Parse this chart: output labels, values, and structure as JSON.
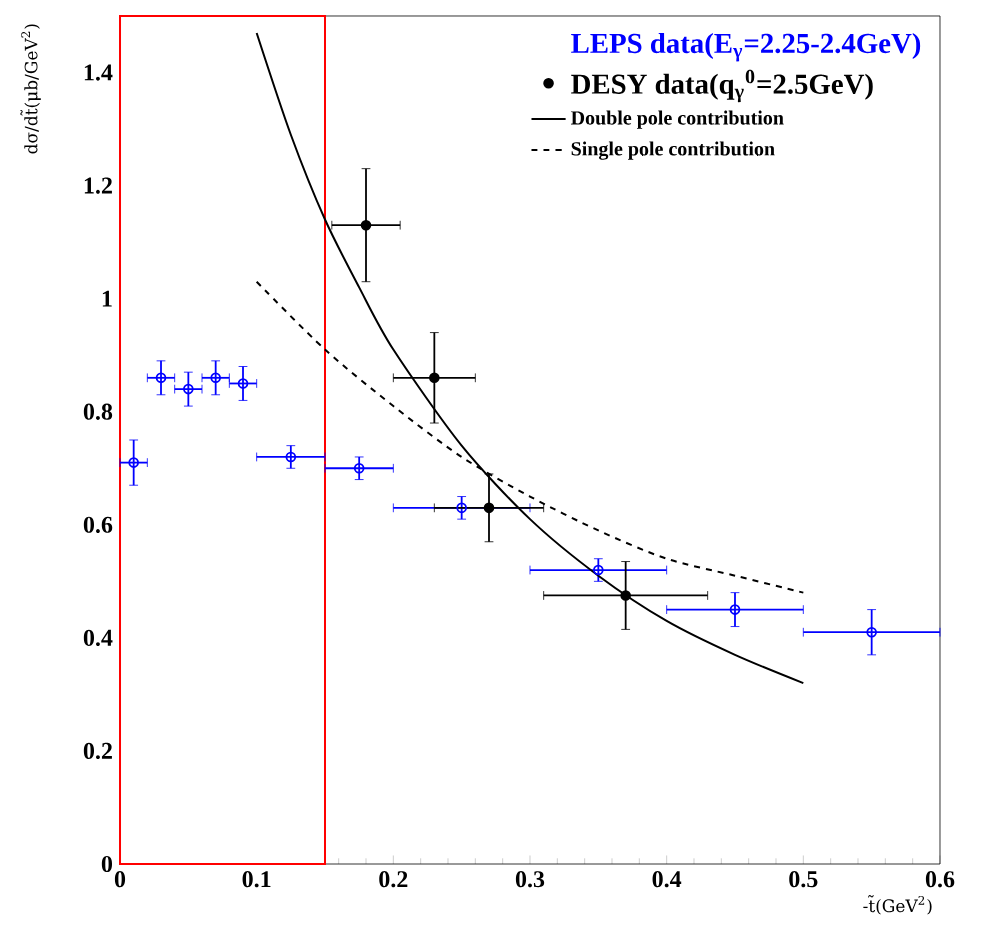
{
  "chart_data": {
    "type": "scatter",
    "xlabel": "-t̃(GeV$^{2}$)",
    "ylabel": "dσ/dt̃(μb/GeV$^{2}$)",
    "xlim": [
      0,
      0.6
    ],
    "ylim": [
      0,
      1.5
    ],
    "xticks": [
      0,
      0.1,
      0.2,
      0.3,
      0.4,
      0.5,
      0.6
    ],
    "yticks": [
      0,
      0.2,
      0.4,
      0.6,
      0.8,
      1,
      1.2,
      1.4
    ],
    "grid": false,
    "legend": "top right",
    "bands": [
      {
        "axis": "x",
        "from": 0,
        "to": 0.15,
        "color": "#ff0000"
      }
    ],
    "series": [
      {
        "name": "LEPS data(E$_{γ}$=2.25-2.4GeV)",
        "marker": "circle",
        "color": "#0000ff",
        "x": [
          0.01,
          0.03,
          0.05,
          0.07,
          0.09,
          0.125,
          0.175,
          0.25,
          0.35,
          0.45,
          0.55
        ],
        "values": [
          0.71,
          0.86,
          0.84,
          0.86,
          0.85,
          0.72,
          0.7,
          0.63,
          0.52,
          0.45,
          0.41
        ],
        "errors": [
          0.04,
          0.03,
          0.03,
          0.03,
          0.03,
          0.02,
          0.02,
          0.02,
          0.02,
          0.03,
          0.04
        ],
        "xerrors": [
          0.01,
          0.01,
          0.01,
          0.01,
          0.01,
          0.025,
          0.025,
          0.05,
          0.05,
          0.05,
          0.05
        ]
      },
      {
        "name": "DESY data(q$_{γ}$$^{0}$=2.5GeV)",
        "marker": "circle",
        "color": "#000000",
        "x": [
          0.18,
          0.23,
          0.27,
          0.37
        ],
        "values": [
          1.13,
          0.86,
          0.63,
          0.475
        ],
        "errors": [
          0.1,
          0.08,
          0.06,
          0.06
        ],
        "xerrors": [
          0.025,
          0.03,
          0.04,
          0.06
        ]
      },
      {
        "name": "Double pole contribution",
        "type": "line",
        "marker": "none",
        "line_style": "solid",
        "color": "#000000",
        "x": [
          0.1,
          0.125,
          0.15,
          0.175,
          0.2,
          0.25,
          0.3,
          0.35,
          0.4,
          0.45,
          0.5
        ],
        "values": [
          1.47,
          1.29,
          1.14,
          1.02,
          0.91,
          0.74,
          0.61,
          0.51,
          0.43,
          0.37,
          0.32
        ]
      },
      {
        "name": "Single pole contribution",
        "type": "line",
        "marker": "none",
        "line_style": "dashed",
        "color": "#000000",
        "x": [
          0.1,
          0.15,
          0.2,
          0.25,
          0.3,
          0.35,
          0.4,
          0.45,
          0.5
        ],
        "values": [
          1.03,
          0.91,
          0.81,
          0.72,
          0.65,
          0.59,
          0.54,
          0.51,
          0.48
        ]
      }
    ]
  }
}
